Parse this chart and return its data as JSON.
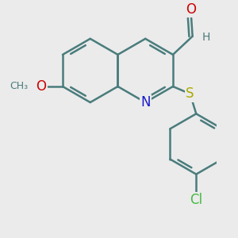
{
  "bg_color": "#ebebeb",
  "bond_color": "#4a7c7c",
  "bond_width": 1.8,
  "atom_colors": {
    "N": "#1a1acc",
    "O": "#cc0000",
    "S": "#aaaa00",
    "Cl": "#44bb44",
    "C": "#4a7c7c",
    "H": "#4a7c7c"
  },
  "font_size": 10,
  "fig_size": [
    3.0,
    3.0
  ],
  "dpi": 100
}
